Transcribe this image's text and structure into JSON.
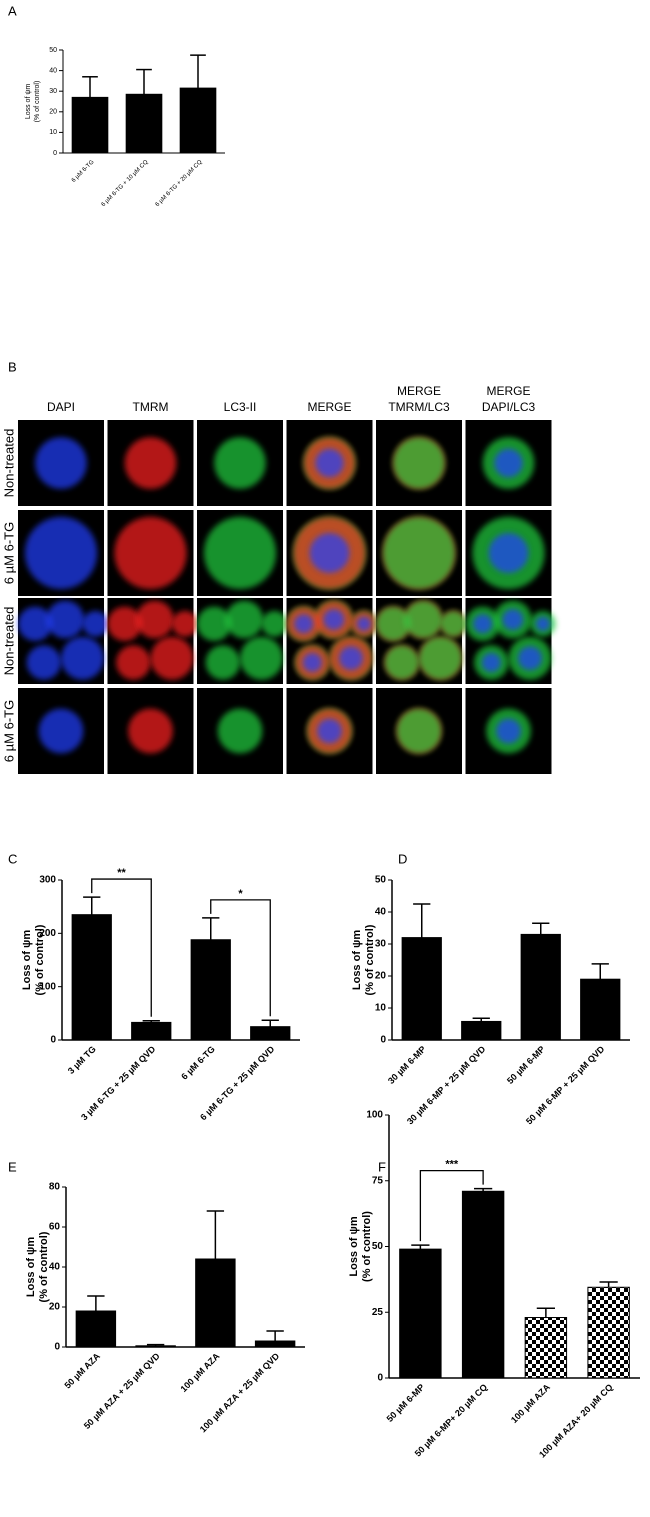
{
  "chart_data": [
    {
      "type": "bar",
      "panel_label": "A",
      "ylabel": [
        "Loss of ψm",
        "(% of control)"
      ],
      "categories": [
        "6 µM 6-TG",
        "6 µM 6-TG + 10 µM CQ",
        "6 µM 6-TG + 20 µM CQ"
      ],
      "values": [
        27,
        28.5,
        31.5
      ],
      "errors": [
        10,
        12,
        16
      ],
      "color": "#000000",
      "ylim": [
        0,
        50
      ],
      "yticks": [
        0,
        10,
        20,
        30,
        40,
        50
      ]
    },
    {
      "type": "bar",
      "panel_label": "C",
      "ylabel": [
        "Loss of ψm",
        "(% of control)"
      ],
      "categories": [
        "3 µM TG",
        "3 µM 6-TG + 25 µM QVD",
        "6 µM 6-TG",
        "6 µM 6-TG + 25 µM QVD"
      ],
      "values": [
        235,
        33,
        188,
        25
      ],
      "errors": [
        33,
        3,
        41,
        12
      ],
      "color": "#000000",
      "ylim": [
        0,
        300
      ],
      "yticks": [
        0,
        100,
        200,
        300
      ],
      "brackets": [
        {
          "categories": [
            0,
            1
          ],
          "label": "**"
        },
        {
          "categories": [
            2,
            3
          ],
          "label": "*"
        }
      ]
    },
    {
      "type": "bar",
      "panel_label": "D",
      "ylabel": [
        "Loss of ψm",
        "(% of control)"
      ],
      "categories": [
        "30 µM 6-MP",
        "30 µM 6-MP + 25 µM QVD",
        "50 µM 6-MP",
        "50 µM 6-MP + 25 µM QVD"
      ],
      "values": [
        32,
        5.8,
        33,
        19
      ],
      "errors": [
        10.5,
        1,
        3.5,
        4.8
      ],
      "color": "#000000",
      "ylim": [
        0,
        50
      ],
      "yticks": [
        0,
        10,
        20,
        30,
        40,
        50
      ]
    },
    {
      "type": "bar",
      "panel_label": "E",
      "ylabel": [
        "Loss of ψm",
        "(% of control)"
      ],
      "categories": [
        "50 µM AZA",
        "50 µM AZA + 25 µM QVD",
        "100 µM AZA",
        "100 µM AZA + 25 µM QVD"
      ],
      "values": [
        18,
        0.6,
        44,
        3
      ],
      "errors": [
        7.5,
        0.6,
        24,
        5
      ],
      "color": "#000000",
      "ylim": [
        0,
        80
      ],
      "yticks": [
        0,
        20,
        40,
        60,
        80
      ]
    },
    {
      "type": "bar",
      "panel_label": "F",
      "ylabel": [
        "Loss of ψm",
        "(% of control)"
      ],
      "categories": [
        "50 µM 6-MP",
        "50 µM 6-MP+ 20 µM CQ",
        "100 µM AZA",
        "100 µM AZA+ 20 µM CQ"
      ],
      "values": [
        49,
        71,
        23,
        34.5
      ],
      "errors": [
        1.5,
        1,
        3.5,
        2
      ],
      "color": "#000000",
      "patterns": [
        "solid",
        "solid",
        "checker",
        "checker"
      ],
      "ylim": [
        0,
        100
      ],
      "yticks": [
        0,
        25,
        50,
        75,
        100
      ],
      "brackets": [
        {
          "categories": [
            0,
            1
          ],
          "label": "***"
        }
      ]
    }
  ],
  "image_grid": {
    "panel_label": "B",
    "columns": [
      [
        "DAPI"
      ],
      [
        "TMRM"
      ],
      [
        "LC3-II"
      ],
      [
        "MERGE"
      ],
      [
        "MERGE",
        "TMRM/LC3"
      ],
      [
        "MERGE",
        "DAPI/LC3"
      ]
    ],
    "rows": [
      "Non-treated",
      "6 µM 6-TG",
      "Non-treated",
      "6 µM 6-TG"
    ]
  }
}
